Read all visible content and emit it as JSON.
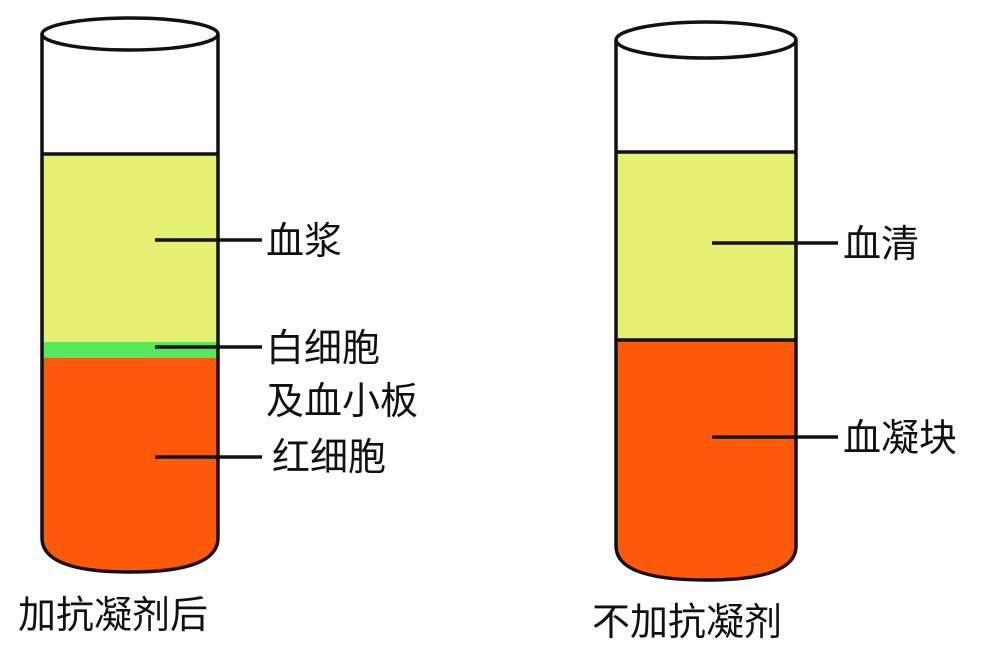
{
  "left_tube": {
    "caption": "加抗凝剂后",
    "layers": {
      "plasma": {
        "label": "血浆",
        "color": "#e5ef72"
      },
      "buffy_coat": {
        "label_line1": "白细胞",
        "label_line2": "及血小板",
        "color": "#55e85a"
      },
      "red_cells": {
        "label": "红细胞",
        "color": "#ff5a0a"
      }
    }
  },
  "right_tube": {
    "caption": "不加抗凝剂",
    "layers": {
      "serum": {
        "label": "血清",
        "color": "#e5ef72"
      },
      "clot": {
        "label": "血凝块",
        "color": "#ff5a0a"
      }
    }
  }
}
